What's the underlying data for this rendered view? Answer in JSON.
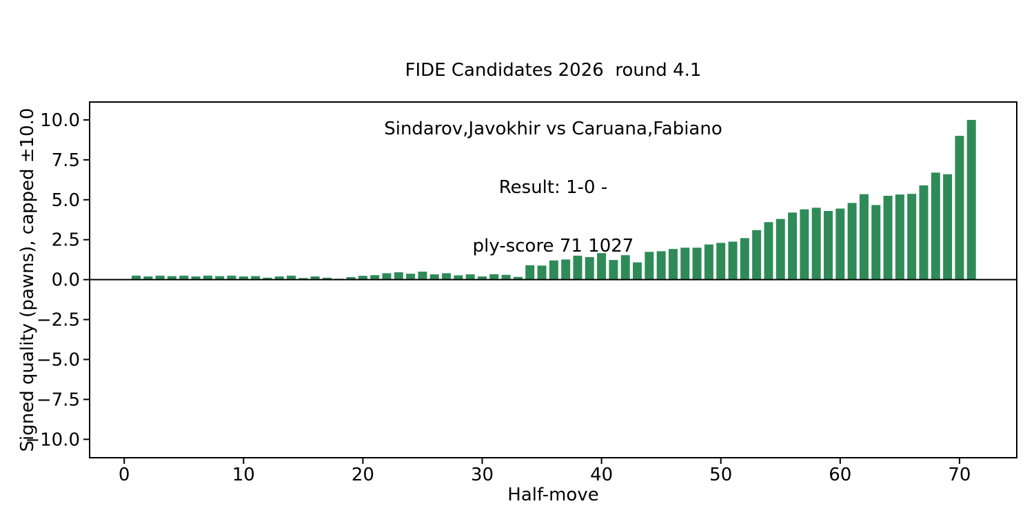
{
  "title_lines": [
    "FIDE Candidates 2026  round 4.1",
    "Sindarov,Javokhir vs Caruana,Fabiano",
    "Result: 1-0 -",
    "ply-score 71 1027"
  ],
  "chart_data": {
    "type": "bar",
    "title": "FIDE Candidates 2026  round 4.1\nSindarov,Javokhir vs Caruana,Fabiano\nResult: 1-0 -\nply-score 71 1027",
    "xlabel": "Half-move",
    "ylabel": "Signed quality (pawns), capped ±10.0",
    "x": [
      1,
      2,
      3,
      4,
      5,
      6,
      7,
      8,
      9,
      10,
      11,
      12,
      13,
      14,
      15,
      16,
      17,
      18,
      19,
      20,
      21,
      22,
      23,
      24,
      25,
      26,
      27,
      28,
      29,
      30,
      31,
      32,
      33,
      34,
      35,
      36,
      37,
      38,
      39,
      40,
      41,
      42,
      43,
      44,
      45,
      46,
      47,
      48,
      49,
      50,
      51,
      52,
      53,
      54,
      55,
      56,
      57,
      58,
      59,
      60,
      61,
      62,
      63,
      64,
      65,
      66,
      67,
      68,
      69,
      70,
      71
    ],
    "values": [
      0.25,
      0.2,
      0.25,
      0.22,
      0.25,
      0.2,
      0.25,
      0.22,
      0.25,
      0.2,
      0.22,
      0.12,
      0.2,
      0.25,
      0.1,
      0.2,
      0.12,
      0.06,
      0.16,
      0.24,
      0.28,
      0.4,
      0.46,
      0.37,
      0.5,
      0.33,
      0.4,
      0.27,
      0.33,
      0.2,
      0.34,
      0.3,
      0.17,
      0.9,
      0.88,
      1.2,
      1.26,
      1.5,
      1.41,
      1.66,
      1.23,
      1.53,
      1.08,
      1.74,
      1.78,
      1.92,
      2.0,
      2.0,
      2.2,
      2.3,
      2.38,
      2.6,
      3.1,
      3.6,
      3.8,
      4.2,
      4.4,
      4.5,
      4.3,
      4.45,
      4.8,
      5.35,
      4.67,
      5.25,
      5.33,
      5.37,
      5.9,
      6.7,
      6.6,
      9.0,
      10.0
    ],
    "bar_width_units": 0.75,
    "bar_color": "#2e8b57",
    "xticks": [
      0,
      10,
      20,
      30,
      40,
      50,
      60,
      70
    ],
    "xtick_labels": [
      "0",
      "10",
      "20",
      "30",
      "40",
      "50",
      "60",
      "70"
    ],
    "yticks": [
      10.0,
      7.5,
      5.0,
      2.5,
      0.0,
      -2.5,
      -5.0,
      -7.5,
      -10.0
    ],
    "ytick_labels": [
      "10.0",
      "7.5",
      "5.0",
      "2.5",
      "0.0",
      "−2.5",
      "−5.0",
      "−7.5",
      "−10.0"
    ],
    "xlim": [
      -2.9,
      74.8
    ],
    "ylim": [
      -11.15,
      11.12
    ],
    "grid": false,
    "zero_line": true,
    "legend": null
  }
}
